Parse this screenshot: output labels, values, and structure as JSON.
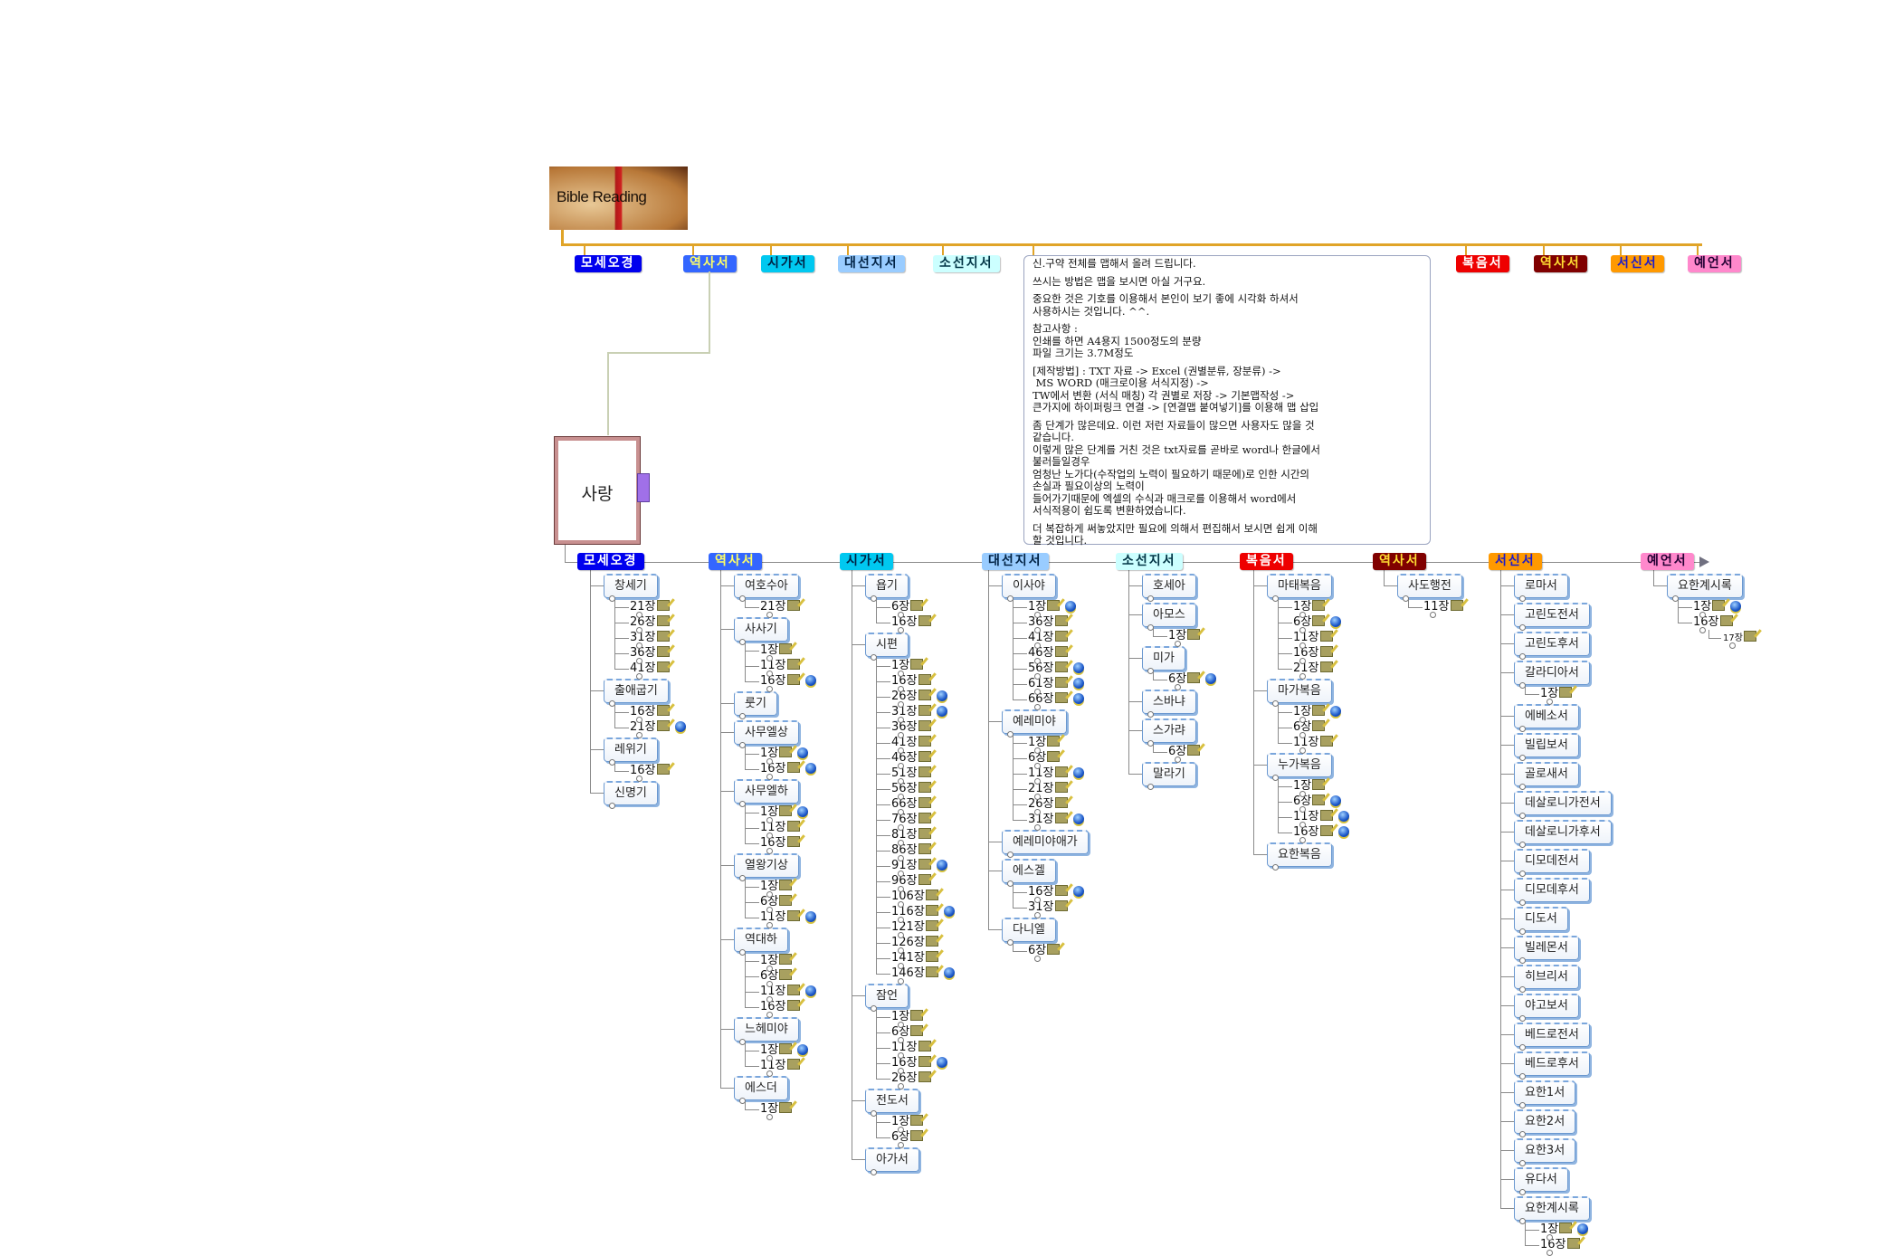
{
  "central": {
    "title": "Bible Reading"
  },
  "top_categories": [
    {
      "label": "모세오경",
      "bg": "#0000ee",
      "fg": "#ffffff"
    },
    {
      "label": "역사서",
      "bg": "#3366ff",
      "fg": "#ffff66"
    },
    {
      "label": "시가서",
      "bg": "#00c8f0",
      "fg": "#002244"
    },
    {
      "label": "대선지서",
      "bg": "#99ccff",
      "fg": "#002244"
    },
    {
      "label": "소선지서",
      "bg": "#ccffff",
      "fg": "#003344"
    },
    {
      "label": "복음서",
      "bg": "#ee0000",
      "fg": "#ffffff"
    },
    {
      "label": "역사서",
      "bg": "#800000",
      "fg": "#ffdd33"
    },
    {
      "label": "서신서",
      "bg": "#ff9900",
      "fg": "#1a1acc"
    },
    {
      "label": "예언서",
      "bg": "#ff88cc",
      "fg": "#220033"
    }
  ],
  "note": {
    "lines": [
      "신.구약 전체를 맵해서 올려 드립니다.",
      "",
      "쓰시는 방법은 맵을 보시면 아실 거구요.",
      "",
      "중요한 것은 기호를 이용해서 본인이 보기 좋에 시각화 하셔서",
      "사용하시는 것입니다. ^^.",
      "",
      "참고사항 :",
      "인쇄를 하면 A4용지 1500정도의 분량",
      "파일 크기는 3.7M정도",
      "",
      "[제작방법] : TXT 자료 -> Excel (권별분류, 장분류) ->",
      " MS WORD (매크로이용 서식지정) ->",
      "TW에서 변환 (서식 매칭) 각 권별로 저장 -> 기본맵작성 ->",
      "큰가지에 하이퍼링크 연결 -> [연결맵 붙여넣기]를 이용해 맵 삽입",
      "",
      "좀 단계가 많은데요. 이런 저런 자료들이 많으면 사용자도 많을 것",
      "같습니다.",
      "이렇게 많은 단계를 거친 것은 txt자료를 곧바로 word나 한글에서",
      "불러들일경우",
      "엄청난 노가다(수작업의 노력이 필요하기 때문에)로 인한 시간의",
      "손실과 필요이상의 노력이",
      "들어가기때문에 엑셀의 수식과 매크로를 이용해서 word에서",
      "서식적용이 쉽도록 변환하였습니다.",
      "",
      "더 복잡하게 써놓았지만 필요에 의해서 편집해서 보시면 쉽게 이해",
      "할 것입니다."
    ]
  },
  "linked_map": {
    "title": "사랑"
  },
  "tree": [
    {
      "label": "모세오경",
      "books": [
        {
          "name": "창세기",
          "chapters": [
            {
              "l": "21장"
            },
            {
              "l": "26장"
            },
            {
              "l": "31장"
            },
            {
              "l": "36장"
            },
            {
              "l": "41장"
            }
          ]
        },
        {
          "name": "출애굽기",
          "chapters": [
            {
              "l": "16장"
            },
            {
              "l": "21장",
              "globe": true
            }
          ]
        },
        {
          "name": "레위기",
          "chapters": [
            {
              "l": "16장"
            }
          ]
        },
        {
          "name": "신명기",
          "chapters": []
        }
      ]
    },
    {
      "label": "역사서",
      "books": [
        {
          "name": "여호수아",
          "chapters": [
            {
              "l": "21장"
            }
          ]
        },
        {
          "name": "사사기",
          "chapters": [
            {
              "l": "1장"
            },
            {
              "l": "11장"
            },
            {
              "l": "16장",
              "globe": true
            }
          ]
        },
        {
          "name": "룻기",
          "chapters": []
        },
        {
          "name": "사무엘상",
          "chapters": [
            {
              "l": "1장",
              "globe": true
            },
            {
              "l": "16장",
              "globe": true
            }
          ]
        },
        {
          "name": "사무엘하",
          "chapters": [
            {
              "l": "1장",
              "globe": true
            },
            {
              "l": "11장"
            },
            {
              "l": "16장"
            }
          ]
        },
        {
          "name": "열왕기상",
          "chapters": [
            {
              "l": "1장"
            },
            {
              "l": "6장"
            },
            {
              "l": "11장",
              "globe": true
            }
          ]
        },
        {
          "name": "역대하",
          "chapters": [
            {
              "l": "1장"
            },
            {
              "l": "6장"
            },
            {
              "l": "11장",
              "globe": true
            },
            {
              "l": "16장"
            }
          ]
        },
        {
          "name": "느헤미야",
          "chapters": [
            {
              "l": "1장",
              "globe": true
            },
            {
              "l": "11장"
            }
          ]
        },
        {
          "name": "에스더",
          "chapters": [
            {
              "l": "1장"
            }
          ]
        }
      ]
    },
    {
      "label": "시가서",
      "books": [
        {
          "name": "욥기",
          "chapters": [
            {
              "l": "6장"
            },
            {
              "l": "16장"
            }
          ]
        },
        {
          "name": "시편",
          "chapters": [
            {
              "l": "1장"
            },
            {
              "l": "16장"
            },
            {
              "l": "26장",
              "globe": true
            },
            {
              "l": "31장",
              "globe": true
            },
            {
              "l": "36장"
            },
            {
              "l": "41장"
            },
            {
              "l": "46장"
            },
            {
              "l": "51장"
            },
            {
              "l": "56장"
            },
            {
              "l": "66장"
            },
            {
              "l": "76장"
            },
            {
              "l": "81장"
            },
            {
              "l": "86장"
            },
            {
              "l": "91장",
              "globe": true
            },
            {
              "l": "96장"
            },
            {
              "l": "106장"
            },
            {
              "l": "116장",
              "globe": true
            },
            {
              "l": "121장"
            },
            {
              "l": "126장"
            },
            {
              "l": "141장"
            },
            {
              "l": "146장",
              "globe": true
            }
          ]
        },
        {
          "name": "잠언",
          "chapters": [
            {
              "l": "1장"
            },
            {
              "l": "6장"
            },
            {
              "l": "11장"
            },
            {
              "l": "16장",
              "globe": true
            },
            {
              "l": "26장"
            }
          ]
        },
        {
          "name": "전도서",
          "chapters": [
            {
              "l": "1장"
            },
            {
              "l": "6장"
            }
          ]
        },
        {
          "name": "아가서",
          "chapters": []
        }
      ]
    },
    {
      "label": "대선지서",
      "books": [
        {
          "name": "이사야",
          "chapters": [
            {
              "l": "1장",
              "globe": true
            },
            {
              "l": "36장"
            },
            {
              "l": "41장"
            },
            {
              "l": "46장"
            },
            {
              "l": "56장",
              "globe": true
            },
            {
              "l": "61장",
              "globe": true
            },
            {
              "l": "66장",
              "globe": true
            }
          ]
        },
        {
          "name": "예레미야",
          "chapters": [
            {
              "l": "1장"
            },
            {
              "l": "6장"
            },
            {
              "l": "11장",
              "globe": true
            },
            {
              "l": "21장"
            },
            {
              "l": "26장"
            },
            {
              "l": "31장",
              "globe": true
            }
          ]
        },
        {
          "name": "예레미야애가",
          "chapters": []
        },
        {
          "name": "에스겔",
          "chapters": [
            {
              "l": "16장",
              "globe": true
            },
            {
              "l": "31장"
            }
          ]
        },
        {
          "name": "다니엘",
          "chapters": [
            {
              "l": "6장"
            }
          ]
        }
      ]
    },
    {
      "label": "소선지서",
      "books": [
        {
          "name": "호세아",
          "chapters": []
        },
        {
          "name": "아모스",
          "chapters": [
            {
              "l": "1장"
            }
          ]
        },
        {
          "name": "미가",
          "chapters": [
            {
              "l": "6장",
              "globe": true
            }
          ]
        },
        {
          "name": "스바냐",
          "chapters": []
        },
        {
          "name": "스가랴",
          "chapters": [
            {
              "l": "6장"
            }
          ]
        },
        {
          "name": "말라기",
          "chapters": []
        }
      ]
    },
    {
      "label": "복음서",
      "books": [
        {
          "name": "마태복음",
          "chapters": [
            {
              "l": "1장"
            },
            {
              "l": "6장",
              "globe": true
            },
            {
              "l": "11장"
            },
            {
              "l": "16장"
            },
            {
              "l": "21장"
            }
          ]
        },
        {
          "name": "마가복음",
          "chapters": [
            {
              "l": "1장",
              "globe": true
            },
            {
              "l": "6장"
            },
            {
              "l": "11장"
            }
          ]
        },
        {
          "name": "누가복음",
          "chapters": [
            {
              "l": "1장"
            },
            {
              "l": "6장",
              "globe": true
            },
            {
              "l": "11장",
              "globe": true
            },
            {
              "l": "16장",
              "globe": true
            }
          ]
        },
        {
          "name": "요한복음",
          "chapters": []
        }
      ]
    },
    {
      "label": "역사서",
      "books": [
        {
          "name": "사도행전",
          "chapters": [
            {
              "l": "11장"
            }
          ]
        }
      ]
    },
    {
      "label": "서신서",
      "books": [
        {
          "name": "로마서",
          "chapters": []
        },
        {
          "name": "고린도전서",
          "chapters": []
        },
        {
          "name": "고린도후서",
          "chapters": []
        },
        {
          "name": "갈라디아서",
          "chapters": [
            {
              "l": "1장"
            }
          ]
        },
        {
          "name": "에베소서",
          "chapters": []
        },
        {
          "name": "빌립보서",
          "chapters": []
        },
        {
          "name": "골로새서",
          "chapters": []
        },
        {
          "name": "데살로니가전서",
          "chapters": []
        },
        {
          "name": "데살로니가후서",
          "chapters": []
        },
        {
          "name": "디모데전서",
          "chapters": []
        },
        {
          "name": "디모데후서",
          "chapters": []
        },
        {
          "name": "디도서",
          "chapters": []
        },
        {
          "name": "빌레몬서",
          "chapters": []
        },
        {
          "name": "히브리서",
          "chapters": []
        },
        {
          "name": "야고보서",
          "chapters": []
        },
        {
          "name": "베드로전서",
          "chapters": []
        },
        {
          "name": "베드로후서",
          "chapters": []
        },
        {
          "name": "요한1서",
          "chapters": []
        },
        {
          "name": "요한2서",
          "chapters": []
        },
        {
          "name": "요한3서",
          "chapters": []
        },
        {
          "name": "유다서",
          "chapters": []
        },
        {
          "name": "요한계시록",
          "chapters": [
            {
              "l": "1장",
              "globe": true
            },
            {
              "l": "16장"
            }
          ]
        }
      ]
    },
    {
      "label": "예언서",
      "books": [
        {
          "name": "요한계시록",
          "chapters": [
            {
              "l": "1장",
              "globe": true
            },
            {
              "l": "16장",
              "children": [
                {
                  "l": "17장"
                }
              ]
            }
          ]
        }
      ]
    }
  ],
  "icons": {
    "chapter_note": "note-pencil-icon",
    "chapter_link": "globe-link-icon",
    "branch_end": "arrow-right-icon"
  }
}
